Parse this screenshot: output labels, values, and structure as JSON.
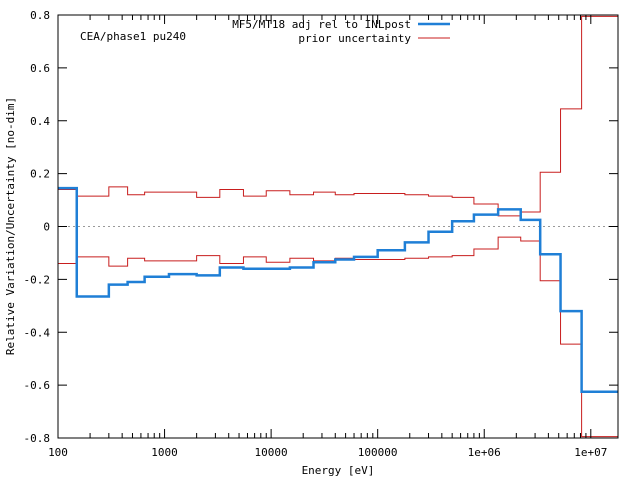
{
  "chart_data": {
    "type": "line",
    "step": true,
    "xscale": "log",
    "title": "",
    "annotation": "CEA/phase1 pu240",
    "xlabel": "Energy [eV]",
    "ylabel": "Relative Variation/Uncertainty [no-dim]",
    "xlim": [
      100,
      18000000
    ],
    "ylim": [
      -0.8,
      0.8
    ],
    "grid": false,
    "legend_position": "top-center",
    "x_ticks": [
      {
        "value": 100,
        "label": "100"
      },
      {
        "value": 1000,
        "label": "1000"
      },
      {
        "value": 10000,
        "label": "10000"
      },
      {
        "value": 100000,
        "label": "100000"
      },
      {
        "value": 1000000,
        "label": "1e+06"
      },
      {
        "value": 10000000,
        "label": "1e+07"
      }
    ],
    "y_ticks": [
      {
        "value": -0.8,
        "label": "-0.8"
      },
      {
        "value": -0.6,
        "label": "-0.6"
      },
      {
        "value": -0.4,
        "label": "-0.4"
      },
      {
        "value": -0.2,
        "label": "-0.2"
      },
      {
        "value": 0,
        "label": "0"
      },
      {
        "value": 0.2,
        "label": "0.2"
      },
      {
        "value": 0.4,
        "label": "0.4"
      },
      {
        "value": 0.6,
        "label": "0.6"
      },
      {
        "value": 0.8,
        "label": "0.8"
      }
    ],
    "bin_edges": [
      100,
      150,
      300,
      450,
      650,
      1100,
      2000,
      3300,
      5500,
      9000,
      15000,
      25000,
      40000,
      60000,
      100000,
      180000,
      300000,
      500000,
      800000,
      1350000,
      2200000,
      3350000,
      5200000,
      8200000,
      18000000
    ],
    "series": [
      {
        "name": "MF5/MT18 adj rel to INLpost",
        "color": "#1f7fd6",
        "stroke": "thick",
        "values": [
          0.145,
          -0.265,
          -0.22,
          -0.21,
          -0.19,
          -0.18,
          -0.185,
          -0.155,
          -0.16,
          -0.16,
          -0.155,
          -0.135,
          -0.125,
          -0.115,
          -0.09,
          -0.06,
          -0.02,
          0.02,
          0.045,
          0.065,
          0.025,
          -0.105,
          -0.32,
          -0.625
        ]
      },
      {
        "name": "prior uncertainty",
        "color": "#c81e1e",
        "stroke": "thin",
        "symmetric": true,
        "values": [
          0.14,
          0.115,
          0.15,
          0.12,
          0.13,
          0.13,
          0.11,
          0.14,
          0.115,
          0.135,
          0.12,
          0.13,
          0.12,
          0.125,
          0.125,
          0.12,
          0.115,
          0.11,
          0.085,
          0.04,
          0.055,
          0.205,
          0.445,
          0.795
        ]
      }
    ]
  }
}
